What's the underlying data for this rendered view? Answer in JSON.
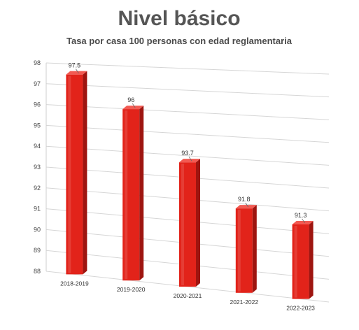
{
  "chart_data": {
    "type": "bar",
    "title": "Nivel básico",
    "subtitle": "Tasa por casa 100 personas con edad reglamentaria",
    "categories": [
      "2018-2019",
      "2019-2020",
      "2020-2021",
      "2021-2022",
      "2022-2023"
    ],
    "values": [
      97.5,
      96,
      93.7,
      91.8,
      91.3
    ],
    "data_labels": [
      "97.5",
      "96",
      "93.7",
      "91.8",
      "91.3"
    ],
    "y_ticks": [
      "88",
      "89",
      "90",
      "91",
      "92",
      "93",
      "94",
      "95",
      "96",
      "97",
      "98"
    ],
    "ylim": [
      88,
      98
    ],
    "grid": true,
    "legend": "none",
    "bar_color": "#e2231a"
  }
}
